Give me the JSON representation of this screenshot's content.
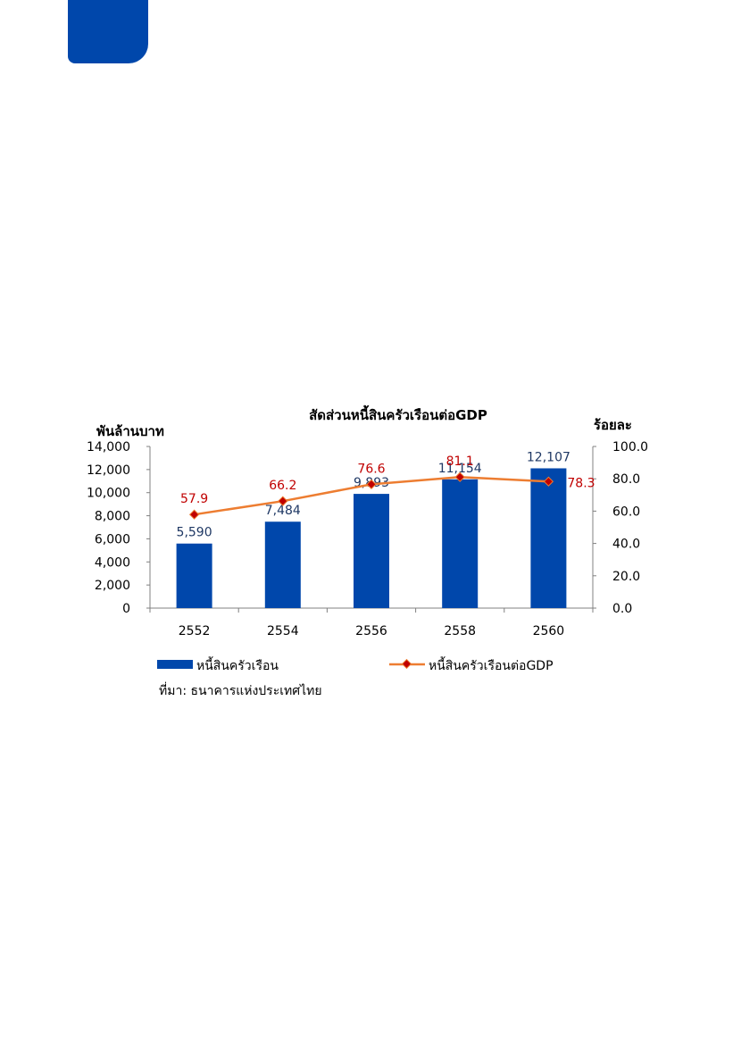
{
  "page": {
    "tab_color": "#0047AB"
  },
  "chart_data": {
    "type": "bar+line",
    "title": "สัดส่วนหนี้สินครัวเรือนต่อGDP",
    "y_left_label": "พันล้านบาท",
    "y_right_label": "ร้อยละ",
    "categories": [
      "2552",
      "2554",
      "2556",
      "2558",
      "2560"
    ],
    "y_left_ticks": [
      "0",
      "2,000",
      "4,000",
      "6,000",
      "8,000",
      "10,000",
      "12,000",
      "14,000"
    ],
    "y_right_ticks": [
      "0.0",
      "20.0",
      "40.0",
      "60.0",
      "80.0",
      "100.0"
    ],
    "ylim_left": [
      0,
      14000
    ],
    "ylim_right": [
      0,
      100
    ],
    "series": [
      {
        "name": "หนี้สินครัวเรือน",
        "type": "bar",
        "axis": "left",
        "color": "#0047AB",
        "label_color": "#1F3864",
        "values": [
          5590,
          7484,
          9893,
          11154,
          12107
        ],
        "labels": [
          "5,590",
          "7,484",
          "9,893",
          "11,154",
          "12,107"
        ]
      },
      {
        "name": "หนี้สินครัวเรือนต่อGDP",
        "type": "line",
        "axis": "right",
        "color": "#ED7D31",
        "marker_color": "#C00000",
        "label_color": "#C00000",
        "values": [
          57.9,
          66.2,
          76.6,
          81.1,
          78.3
        ],
        "labels": [
          "57.9",
          "66.2",
          "76.6",
          "81.1",
          "78.3"
        ]
      }
    ],
    "legend_placement": "bottom",
    "source": "ที่มา: ธนาคารแห่งประเทศไทย",
    "grid": false
  }
}
